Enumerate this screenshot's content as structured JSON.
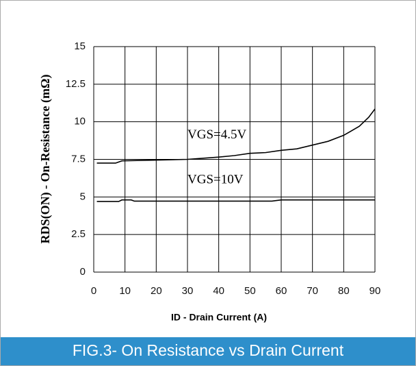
{
  "chart_data": {
    "type": "line",
    "title": "FIG.3-  On Resistance vs Drain Current",
    "xlabel": "ID - Drain Current (A)",
    "ylabel": "RDS(ON) - On-Resistance (mΩ)",
    "xlim": [
      0,
      90
    ],
    "xticks": [
      0,
      10,
      20,
      30,
      40,
      50,
      60,
      70,
      80,
      90
    ],
    "ylim": [
      0,
      15
    ],
    "yticks": [
      0,
      2.5,
      5,
      7.5,
      10,
      12.5,
      15
    ],
    "grid": true,
    "series": [
      {
        "name": "VGS=4.5V",
        "color": "#000000",
        "x": [
          1,
          7,
          9,
          20,
          30,
          40,
          45,
          50,
          55,
          60,
          65,
          70,
          75,
          80,
          85,
          88,
          90
        ],
        "values": [
          7.25,
          7.25,
          7.4,
          7.45,
          7.5,
          7.65,
          7.75,
          7.9,
          7.95,
          8.1,
          8.2,
          8.45,
          8.7,
          9.1,
          9.7,
          10.3,
          10.85
        ]
      },
      {
        "name": "VGS=10V",
        "color": "#000000",
        "x": [
          1,
          8,
          9,
          12,
          13,
          57,
          60,
          90
        ],
        "values": [
          4.7,
          4.7,
          4.8,
          4.8,
          4.72,
          4.72,
          4.8,
          4.8
        ]
      }
    ]
  }
}
